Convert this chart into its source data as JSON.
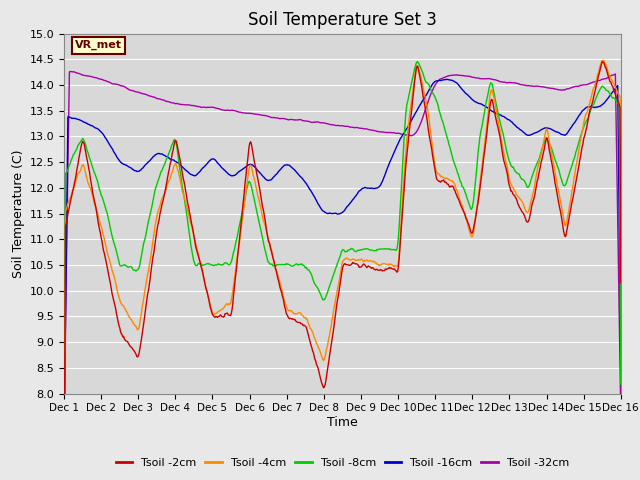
{
  "title": "Soil Temperature Set 3",
  "xlabel": "Time",
  "ylabel": "Soil Temperature (C)",
  "ylim": [
    8.0,
    15.0
  ],
  "yticks": [
    8.0,
    8.5,
    9.0,
    9.5,
    10.0,
    10.5,
    11.0,
    11.5,
    12.0,
    12.5,
    13.0,
    13.5,
    14.0,
    14.5,
    15.0
  ],
  "xtick_labels": [
    "Dec 1",
    "Dec 2",
    "Dec 3",
    "Dec 4",
    "Dec 5",
    "Dec 6",
    "Dec 7",
    "Dec 8",
    "Dec 9",
    "Dec 10",
    "Dec 11",
    "Dec 12",
    "Dec 13",
    "Dec 14",
    "Dec 15",
    "Dec 16"
  ],
  "colors": {
    "Tsoil_2cm": "#cc0000",
    "Tsoil_4cm": "#ff8800",
    "Tsoil_8cm": "#00cc00",
    "Tsoil_16cm": "#0000cc",
    "Tsoil_32cm": "#aa00aa"
  },
  "legend_labels": [
    "Tsoil -2cm",
    "Tsoil -4cm",
    "Tsoil -8cm",
    "Tsoil -16cm",
    "Tsoil -32cm"
  ],
  "annotation_text": "VR_met",
  "annotation_color": "#660000",
  "annotation_bg": "#ffffcc",
  "fig_bg": "#e8e8e8",
  "plot_bg": "#d8d8d8",
  "grid_color": "#ffffff",
  "n_days": 15,
  "pts_per_day": 48
}
